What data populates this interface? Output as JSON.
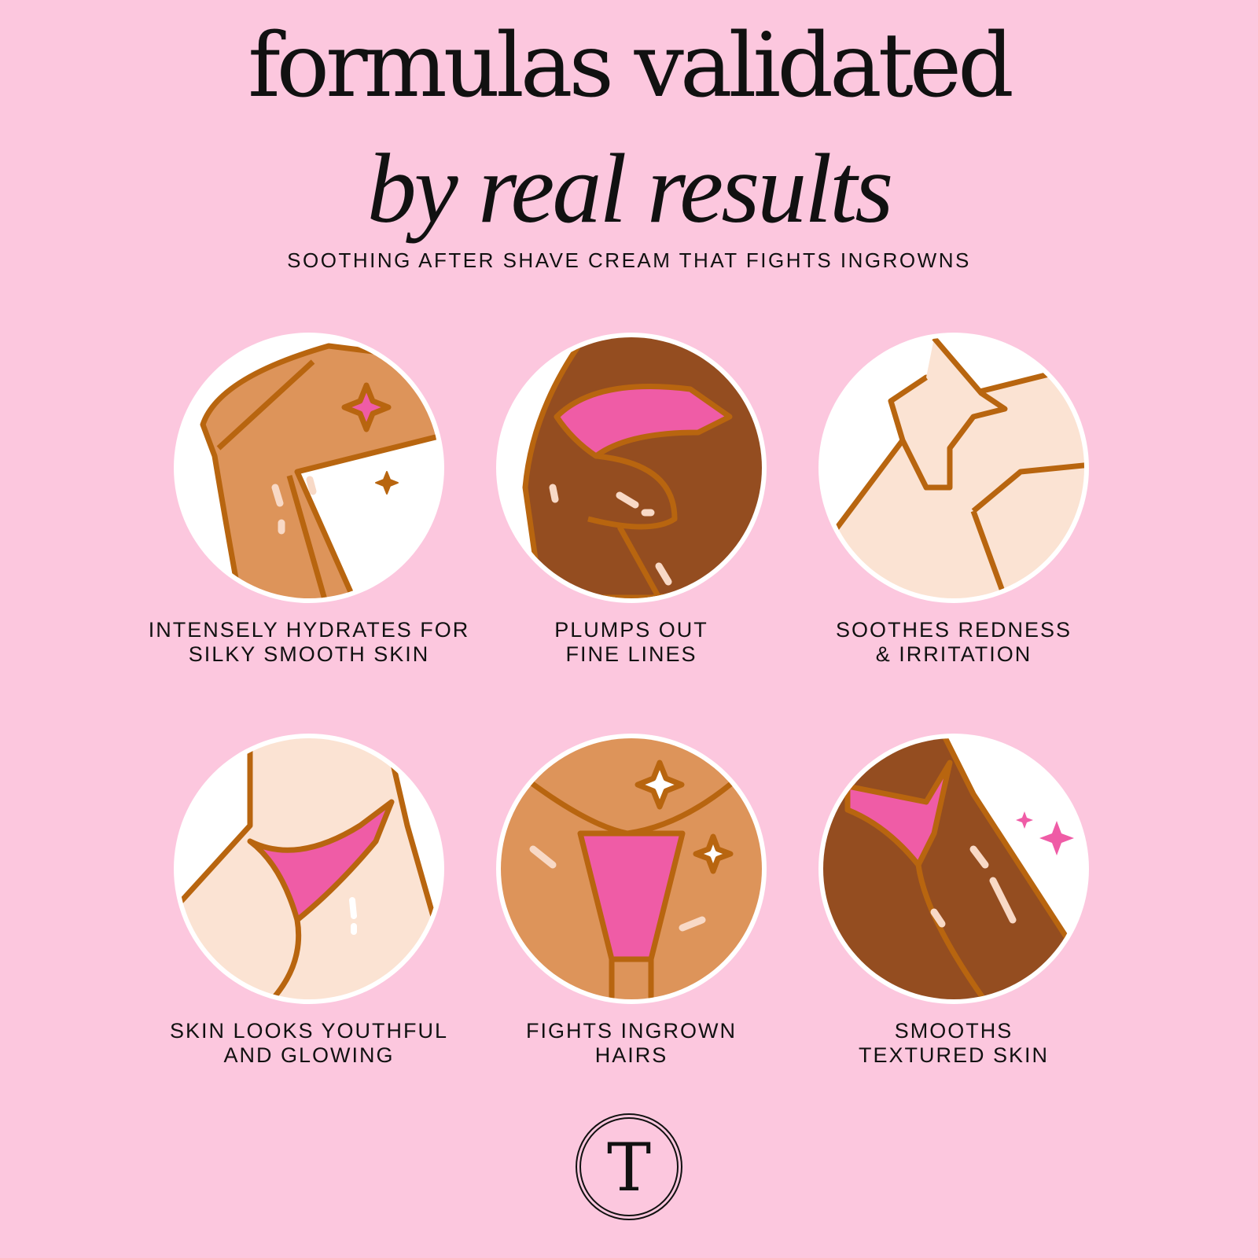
{
  "header": {
    "title_line1": "formulas validated",
    "title_line2": "by real results",
    "subtitle": "SOOTHING AFTER SHAVE CREAM THAT FIGHTS INGROWNS"
  },
  "benefits": [
    {
      "line1": "INTENSELY HYDRATES FOR",
      "line2": "SILKY SMOOTH SKIN",
      "skin": "#dd945a"
    },
    {
      "line1": "PLUMPS OUT",
      "line2": "FINE LINES",
      "skin": "#944d20"
    },
    {
      "line1": "SOOTHES REDNESS",
      "line2": "& IRRITATION",
      "skin": "#fbe3d3"
    },
    {
      "line1": "SKIN LOOKS YOUTHFUL",
      "line2": "AND GLOWING",
      "skin": "#fbe3d3"
    },
    {
      "line1": "FIGHTS INGROWN",
      "line2": "HAIRS",
      "skin": "#dd945a"
    },
    {
      "line1": "SMOOTHS",
      "line2": "TEXTURED SKIN",
      "skin": "#944d20"
    }
  ],
  "colors": {
    "background": "#fcc7de",
    "outline": "#b8650f",
    "accent_pink": "#ef5ca6"
  },
  "logo": {
    "letter": "T"
  }
}
